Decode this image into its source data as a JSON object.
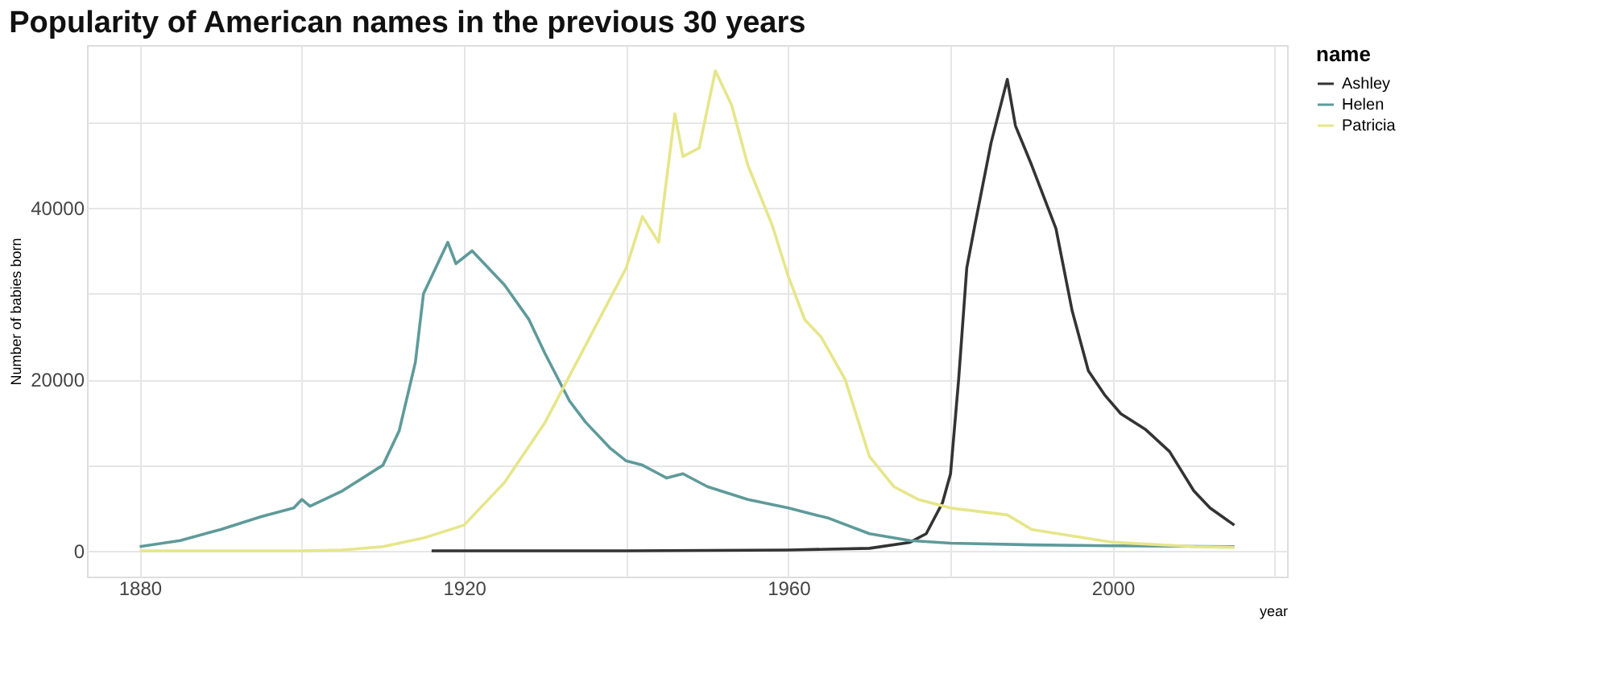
{
  "chart_data": {
    "type": "line",
    "title": "Popularity of American names in the previous 30 years",
    "xlabel": "year",
    "ylabel": "Number of babies born",
    "legend_title": "name",
    "legend": "right",
    "grid": true,
    "xlim": [
      1873.5,
      2021.5
    ],
    "ylim": [
      -3000,
      59000
    ],
    "xticks": [
      1880,
      {
        "value": 1900,
        "label": null
      },
      1920,
      {
        "value": 1940,
        "label": null
      },
      1960,
      {
        "value": 1980,
        "label": null
      },
      2000,
      {
        "value": 2020,
        "label": null
      }
    ],
    "yticks": [
      0,
      {
        "value": 10000,
        "label": null
      },
      20000,
      {
        "value": 30000,
        "label": null
      },
      40000,
      {
        "value": 50000,
        "label": null
      }
    ],
    "series": [
      {
        "name": "Ashley",
        "color": "#333333",
        "x": [
          1916,
          1940,
          1960,
          1970,
          1975,
          1977,
          1979,
          1980,
          1981,
          1982,
          1983,
          1985,
          1987,
          1988,
          1990,
          1993,
          1995,
          1997,
          1999,
          2001,
          2004,
          2007,
          2010,
          2012,
          2015
        ],
        "values": [
          0,
          0,
          100,
          300,
          1000,
          2000,
          5600,
          9000,
          20000,
          33000,
          38000,
          47600,
          55000,
          49600,
          45000,
          37600,
          28000,
          21000,
          18200,
          16000,
          14200,
          11600,
          7000,
          5000,
          3000
        ]
      },
      {
        "name": "Helen",
        "color": "#5f9a9a",
        "x": [
          1880,
          1885,
          1890,
          1895,
          1899,
          1900,
          1901,
          1905,
          1910,
          1912,
          1914,
          1915,
          1916,
          1918,
          1919,
          1921,
          1923,
          1925,
          1928,
          1930,
          1933,
          1935,
          1938,
          1940,
          1942,
          1944,
          1945,
          1947,
          1950,
          1955,
          1960,
          1965,
          1970,
          1975,
          1980,
          1990,
          2000,
          2015
        ],
        "values": [
          500,
          1200,
          2500,
          4000,
          5000,
          6000,
          5200,
          7000,
          10000,
          14000,
          22000,
          30000,
          32000,
          36000,
          33500,
          35000,
          33000,
          31000,
          27000,
          23000,
          17500,
          15000,
          12000,
          10500,
          10000,
          9000,
          8500,
          9000,
          7500,
          6000,
          5000,
          3800,
          2000,
          1200,
          900,
          700,
          600,
          500
        ]
      },
      {
        "name": "Patricia",
        "color": "#e6e68a",
        "x": [
          1880,
          1900,
          1905,
          1910,
          1915,
          1920,
          1925,
          1930,
          1935,
          1940,
          1942,
          1944,
          1946,
          1947,
          1949,
          1951,
          1953,
          1955,
          1958,
          1960,
          1962,
          1964,
          1967,
          1970,
          1973,
          1976,
          1980,
          1987,
          1990,
          2000,
          2010,
          2015
        ],
        "values": [
          0,
          0,
          100,
          500,
          1500,
          3000,
          8000,
          15000,
          24000,
          33000,
          39000,
          36000,
          51000,
          46000,
          47000,
          56000,
          52000,
          45000,
          38000,
          32000,
          27000,
          25000,
          20000,
          11000,
          7500,
          6000,
          5000,
          4200,
          2500,
          1000,
          500,
          400
        ]
      }
    ]
  }
}
